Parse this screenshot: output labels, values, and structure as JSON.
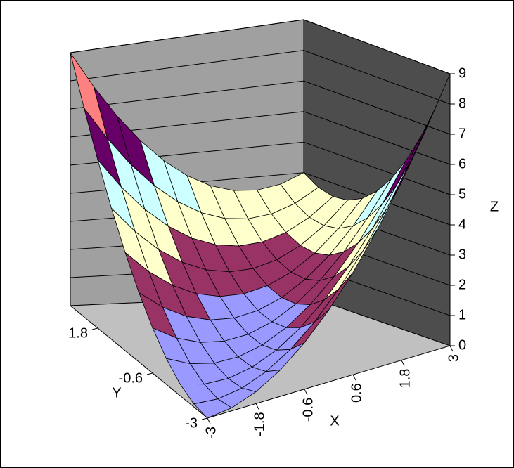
{
  "chart_data": {
    "type": "surface",
    "x": [
      -3,
      -2.4,
      -1.8,
      -1.2,
      -0.6,
      0,
      0.6,
      1.2,
      1.8,
      2.4,
      3
    ],
    "y": [
      -3,
      -2.4,
      -1.8,
      -1.2,
      -0.6,
      0,
      0.6,
      1.2,
      1.8,
      2.4,
      3
    ],
    "z": [
      [
        0,
        0.09,
        0.36,
        0.81,
        1.44,
        2.25,
        3.24,
        4.41,
        5.76,
        7.29,
        9
      ],
      [
        0.09,
        0.04,
        0.17,
        0.48,
        0.97,
        1.64,
        2.49,
        3.52,
        4.73,
        6.12,
        7.69
      ],
      [
        0.36,
        0.17,
        0.16,
        0.33,
        0.68,
        1.21,
        1.92,
        2.81,
        3.88,
        5.13,
        6.56
      ],
      [
        0.81,
        0.48,
        0.33,
        0.36,
        0.57,
        0.96,
        1.53,
        2.28,
        3.21,
        4.32,
        5.61
      ],
      [
        1.44,
        0.97,
        0.68,
        0.57,
        0.64,
        0.89,
        1.32,
        1.93,
        2.72,
        3.69,
        4.84
      ],
      [
        2.25,
        1.64,
        1.21,
        0.96,
        0.89,
        1,
        1.29,
        1.76,
        2.41,
        3.24,
        4.25
      ],
      [
        3.24,
        2.49,
        1.92,
        1.53,
        1.32,
        1.29,
        1.44,
        1.77,
        2.28,
        2.97,
        3.84
      ],
      [
        4.41,
        3.52,
        2.81,
        2.28,
        1.93,
        1.76,
        1.77,
        1.96,
        2.33,
        2.88,
        3.61
      ],
      [
        5.76,
        4.73,
        3.88,
        3.21,
        2.72,
        2.41,
        2.28,
        2.33,
        2.56,
        2.97,
        3.56
      ],
      [
        7.29,
        6.12,
        5.13,
        4.32,
        3.69,
        3.24,
        2.97,
        2.88,
        2.97,
        3.24,
        3.69
      ],
      [
        9,
        7.69,
        6.56,
        5.61,
        4.84,
        4.25,
        3.84,
        3.61,
        3.56,
        3.69,
        4
      ]
    ],
    "xlim": [
      -3,
      3
    ],
    "ylim": [
      -3,
      3
    ],
    "zlim": [
      0,
      9
    ],
    "xticks": [
      -3,
      -1.8,
      -0.6,
      0.6,
      1.8,
      3
    ],
    "yticks": [
      -3,
      -0.6,
      1.8
    ],
    "zticks": [
      0,
      1,
      2,
      3,
      4,
      5,
      6,
      7,
      8,
      9
    ],
    "x_label": "X",
    "y_label": "Y",
    "z_label": "Z",
    "band_colors": [
      "#9999ff",
      "#993366",
      "#ffffcc",
      "#ccffff",
      "#660066",
      "#ff8080",
      "#9999ff"
    ],
    "grid": true
  }
}
